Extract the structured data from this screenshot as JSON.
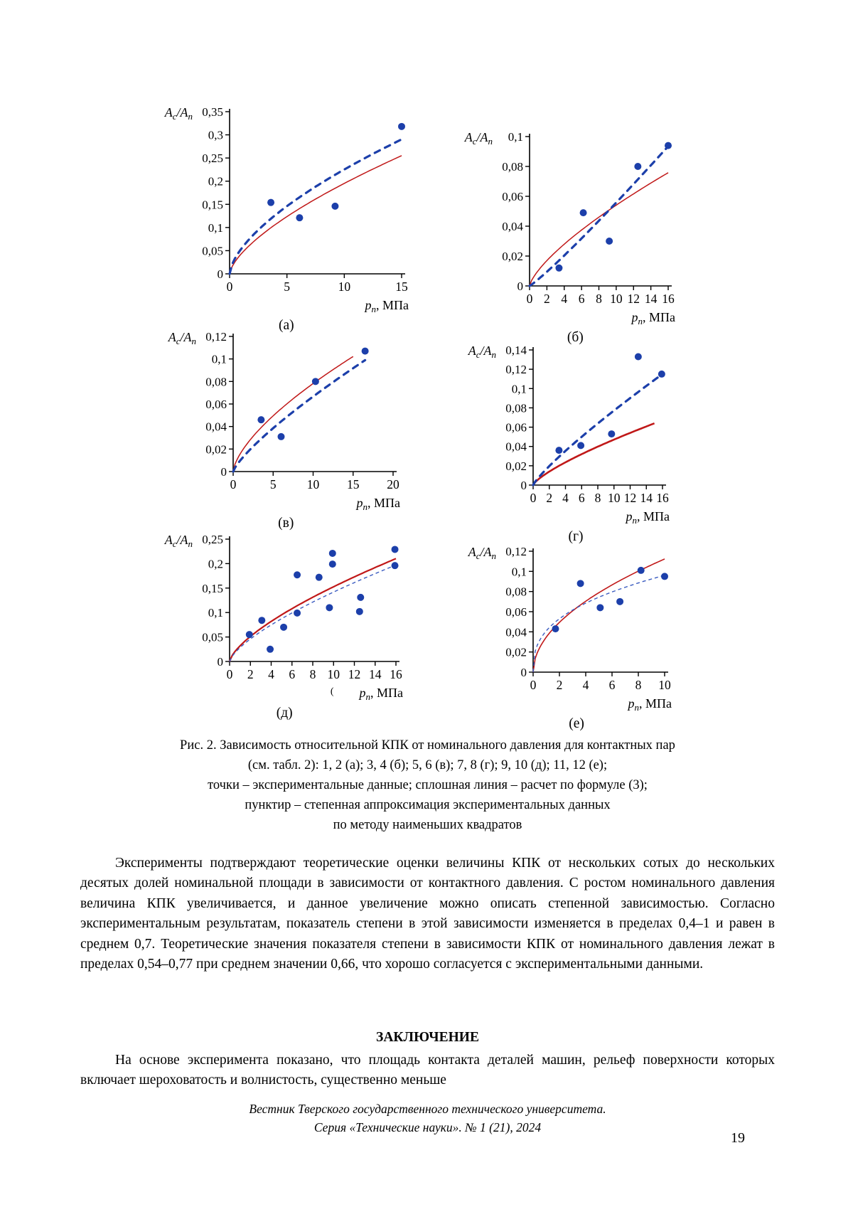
{
  "page": {
    "number": "19"
  },
  "axis_labels": {
    "y_parts": [
      "A",
      "c",
      "/A",
      "n"
    ],
    "x_parts": [
      "p",
      "n",
      ", МПа"
    ]
  },
  "colors": {
    "experimental_point": "#1c3faa",
    "formula_line": "#c01818",
    "approximation_line_thick": "#1c3faa",
    "approximation_line_thin": "#3a5bc0"
  },
  "chart_data": [
    {
      "type": "scatter",
      "caption": "(а)",
      "xlabel": "pn, МПа",
      "ylabel": "Ac/An",
      "x_ticks": [
        0,
        5,
        10,
        15
      ],
      "x_max": 15,
      "y_tick_values": [
        0,
        0.05,
        0.1,
        0.15,
        0.2,
        0.25,
        0.3,
        0.35
      ],
      "y_tick_labels": [
        "0",
        "0,05",
        "0,1",
        "0,15",
        "0,2",
        "0,25",
        "0,3",
        "0,35"
      ],
      "y_max": 0.35,
      "points": [
        [
          3.6,
          0.154
        ],
        [
          6.1,
          0.121
        ],
        [
          9.2,
          0.146
        ],
        [
          15,
          0.318
        ]
      ],
      "curves": [
        {
          "name": "расчет по формуле (3)",
          "style": "solid",
          "color": "#c01818",
          "width": 1.5,
          "a": 0.0427,
          "b": 0.66,
          "x_end": 15
        },
        {
          "name": "степенная аппроксимация",
          "style": "dashed",
          "color": "#1c3faa",
          "width": 3.2,
          "a": 0.0534,
          "b": 0.625,
          "x_end": 15
        }
      ]
    },
    {
      "type": "scatter",
      "caption": "(б)",
      "xlabel": "pn, МПа",
      "ylabel": "Ac/An",
      "x_ticks": [
        0,
        2,
        4,
        6,
        8,
        10,
        12,
        14,
        16
      ],
      "x_max": 16,
      "y_tick_values": [
        0,
        0.02,
        0.04,
        0.06,
        0.08,
        0.1
      ],
      "y_tick_labels": [
        "0",
        "0,02",
        "0,04",
        "0,06",
        "0,08",
        "0,1"
      ],
      "y_max": 0.1,
      "points": [
        [
          3.4,
          0.012
        ],
        [
          6.2,
          0.049
        ],
        [
          9.2,
          0.03
        ],
        [
          12.5,
          0.08
        ],
        [
          16,
          0.094
        ]
      ],
      "curves": [
        {
          "name": "расчет по формуле (3)",
          "style": "solid",
          "color": "#c01818",
          "width": 1.5,
          "a": 0.0103,
          "b": 0.72,
          "x_end": 16
        },
        {
          "name": "степенная аппроксимация",
          "style": "dashed",
          "color": "#1c3faa",
          "width": 3.2,
          "a": 0.00443,
          "b": 1.1,
          "x_end": 16
        }
      ]
    },
    {
      "type": "scatter",
      "caption": "(в)",
      "xlabel": "pn, МПа",
      "ylabel": "Ac/An",
      "x_ticks": [
        0,
        5,
        10,
        15,
        20
      ],
      "x_max": 20,
      "y_tick_values": [
        0,
        0.02,
        0.04,
        0.06,
        0.08,
        0.1,
        0.12
      ],
      "y_tick_labels": [
        "0",
        "0,02",
        "0,04",
        "0,06",
        "0,08",
        "0,1",
        "0,12"
      ],
      "y_max": 0.12,
      "points": [
        [
          3.5,
          0.046
        ],
        [
          6.0,
          0.031
        ],
        [
          10.3,
          0.08
        ],
        [
          16.5,
          0.107
        ]
      ],
      "curves": [
        {
          "name": "расчет по формуле (3)",
          "style": "solid",
          "color": "#c01818",
          "width": 1.5,
          "a": 0.0171,
          "b": 0.66,
          "x_end": 15
        },
        {
          "name": "степенная аппроксимация",
          "style": "dashed",
          "color": "#1c3faa",
          "width": 3.2,
          "a": 0.0108,
          "b": 0.79,
          "x_end": 16.5
        }
      ]
    },
    {
      "type": "scatter",
      "caption": "(г)",
      "xlabel": "pn, МПа",
      "ylabel": "Ac/An",
      "x_ticks": [
        0,
        2,
        4,
        6,
        8,
        10,
        12,
        14,
        16
      ],
      "x_max": 16,
      "y_tick_values": [
        0,
        0.02,
        0.04,
        0.06,
        0.08,
        0.1,
        0.12,
        0.14
      ],
      "y_tick_labels": [
        "0",
        "0,02",
        "0,04",
        "0,06",
        "0,08",
        "0,1",
        "0,12",
        "0,14"
      ],
      "y_max": 0.14,
      "points": [
        [
          3.2,
          0.036
        ],
        [
          5.9,
          0.041
        ],
        [
          9.7,
          0.053
        ],
        [
          13.0,
          0.133
        ],
        [
          15.9,
          0.115
        ]
      ],
      "curves": [
        {
          "name": "расчет по формуле (3)",
          "style": "solid",
          "color": "#c01818",
          "width": 2.6,
          "a": 0.00828,
          "b": 0.755,
          "x_end": 15
        },
        {
          "name": "степенная аппроксимация",
          "style": "dashed",
          "color": "#1c3faa",
          "width": 3.2,
          "a": 0.0109,
          "b": 0.85,
          "x_end": 16
        }
      ]
    },
    {
      "type": "scatter",
      "caption": "(д)",
      "xlabel": "pn, МПа",
      "ylabel": "Ac/An",
      "note_mark": "(",
      "x_ticks": [
        0,
        2,
        4,
        6,
        8,
        10,
        12,
        14,
        16
      ],
      "x_max": 16,
      "y_tick_values": [
        0,
        0.05,
        0.1,
        0.15,
        0.2,
        0.25
      ],
      "y_tick_labels": [
        "0",
        "0,05",
        "0,1",
        "0,15",
        "0,2",
        "0,25"
      ],
      "y_max": 0.25,
      "points": [
        [
          1.9,
          0.055
        ],
        [
          3.1,
          0.084
        ],
        [
          3.9,
          0.025
        ],
        [
          5.2,
          0.07
        ],
        [
          6.5,
          0.177
        ],
        [
          6.5,
          0.099
        ],
        [
          8.6,
          0.172
        ],
        [
          9.9,
          0.221
        ],
        [
          9.9,
          0.199
        ],
        [
          9.6,
          0.11
        ],
        [
          12.6,
          0.131
        ],
        [
          12.5,
          0.102
        ],
        [
          15.9,
          0.229
        ],
        [
          15.9,
          0.196
        ]
      ],
      "curves": [
        {
          "name": "расчет по формуле (3)",
          "style": "solid",
          "color": "#c01818",
          "width": 2.2,
          "a": 0.0319,
          "b": 0.68,
          "x_end": 16
        },
        {
          "name": "степенная аппроксимация",
          "style": "dashed-thin",
          "color": "#3a5bc0",
          "width": 1.4,
          "a": 0.0283,
          "b": 0.7,
          "x_end": 16
        }
      ]
    },
    {
      "type": "scatter",
      "caption": "(е)",
      "xlabel": "pn, МПа",
      "ylabel": "Ac/An",
      "x_ticks": [
        0,
        2,
        4,
        6,
        8,
        10
      ],
      "x_max": 10,
      "y_tick_values": [
        0,
        0.02,
        0.04,
        0.06,
        0.08,
        0.1,
        0.12
      ],
      "y_tick_labels": [
        "0",
        "0,02",
        "0,04",
        "0,06",
        "0,08",
        "0,1",
        "0,12"
      ],
      "y_max": 0.12,
      "points": [
        [
          1.7,
          0.043
        ],
        [
          3.6,
          0.088
        ],
        [
          5.1,
          0.064
        ],
        [
          6.6,
          0.07
        ],
        [
          8.2,
          0.101
        ],
        [
          10,
          0.095
        ]
      ],
      "curves": [
        {
          "name": "расчет по формуле (3)",
          "style": "solid",
          "color": "#c01818",
          "width": 1.6,
          "a": 0.0347,
          "b": 0.51,
          "x_end": 10
        },
        {
          "name": "степенная аппроксимация",
          "style": "dashed-thin",
          "color": "#3a5bc0",
          "width": 1.4,
          "a": 0.041,
          "b": 0.37,
          "x_end": 10
        }
      ]
    }
  ],
  "figure": {
    "caption_lines": [
      "Рис. 2. Зависимость относительной КПК от номинального давления для контактных пар",
      "(см. табл. 2): 1, 2 (а); 3, 4 (б); 5, 6 (в); 7, 8 (г); 9, 10 (д); 11, 12 (е);",
      "точки – экспериментальные данные; сплошная линия – расчет по формуле (3);",
      "пунктир – степенная аппроксимация экспериментальных данных",
      "по методу наименьших квадратов"
    ]
  },
  "paragraphs": {
    "experiments": "Эксперименты подтверждают теоретические оценки величины КПК от нескольких сотых до нескольких десятых долей номинальной площади в зависимости от контактного давления. С ростом номинального давления величина КПК увеличивается, и данное увеличение можно описать степенной зависимостью. Согласно экспериментальным результатам, показатель степени в этой зависимости изменяется в пределах 0,4–1 и равен в среднем 0,7. Теоретические значения показателя степени в зависимости КПК от номинального давления лежат в пределах 0,54–0,77 при среднем значении 0,66, что хорошо согласуется с экспериментальными данными."
  },
  "conclusion": {
    "heading": "ЗАКЛЮЧЕНИЕ",
    "paragraph": "На основе эксперимента показано, что площадь контакта деталей машин, рельеф поверхности которых включает шероховатость и волнистость, существенно меньше"
  },
  "footer": {
    "line1": "Вестник Тверского государственного технического университета.",
    "line2": "Серия «Технические науки». № 1 (21), 2024"
  }
}
